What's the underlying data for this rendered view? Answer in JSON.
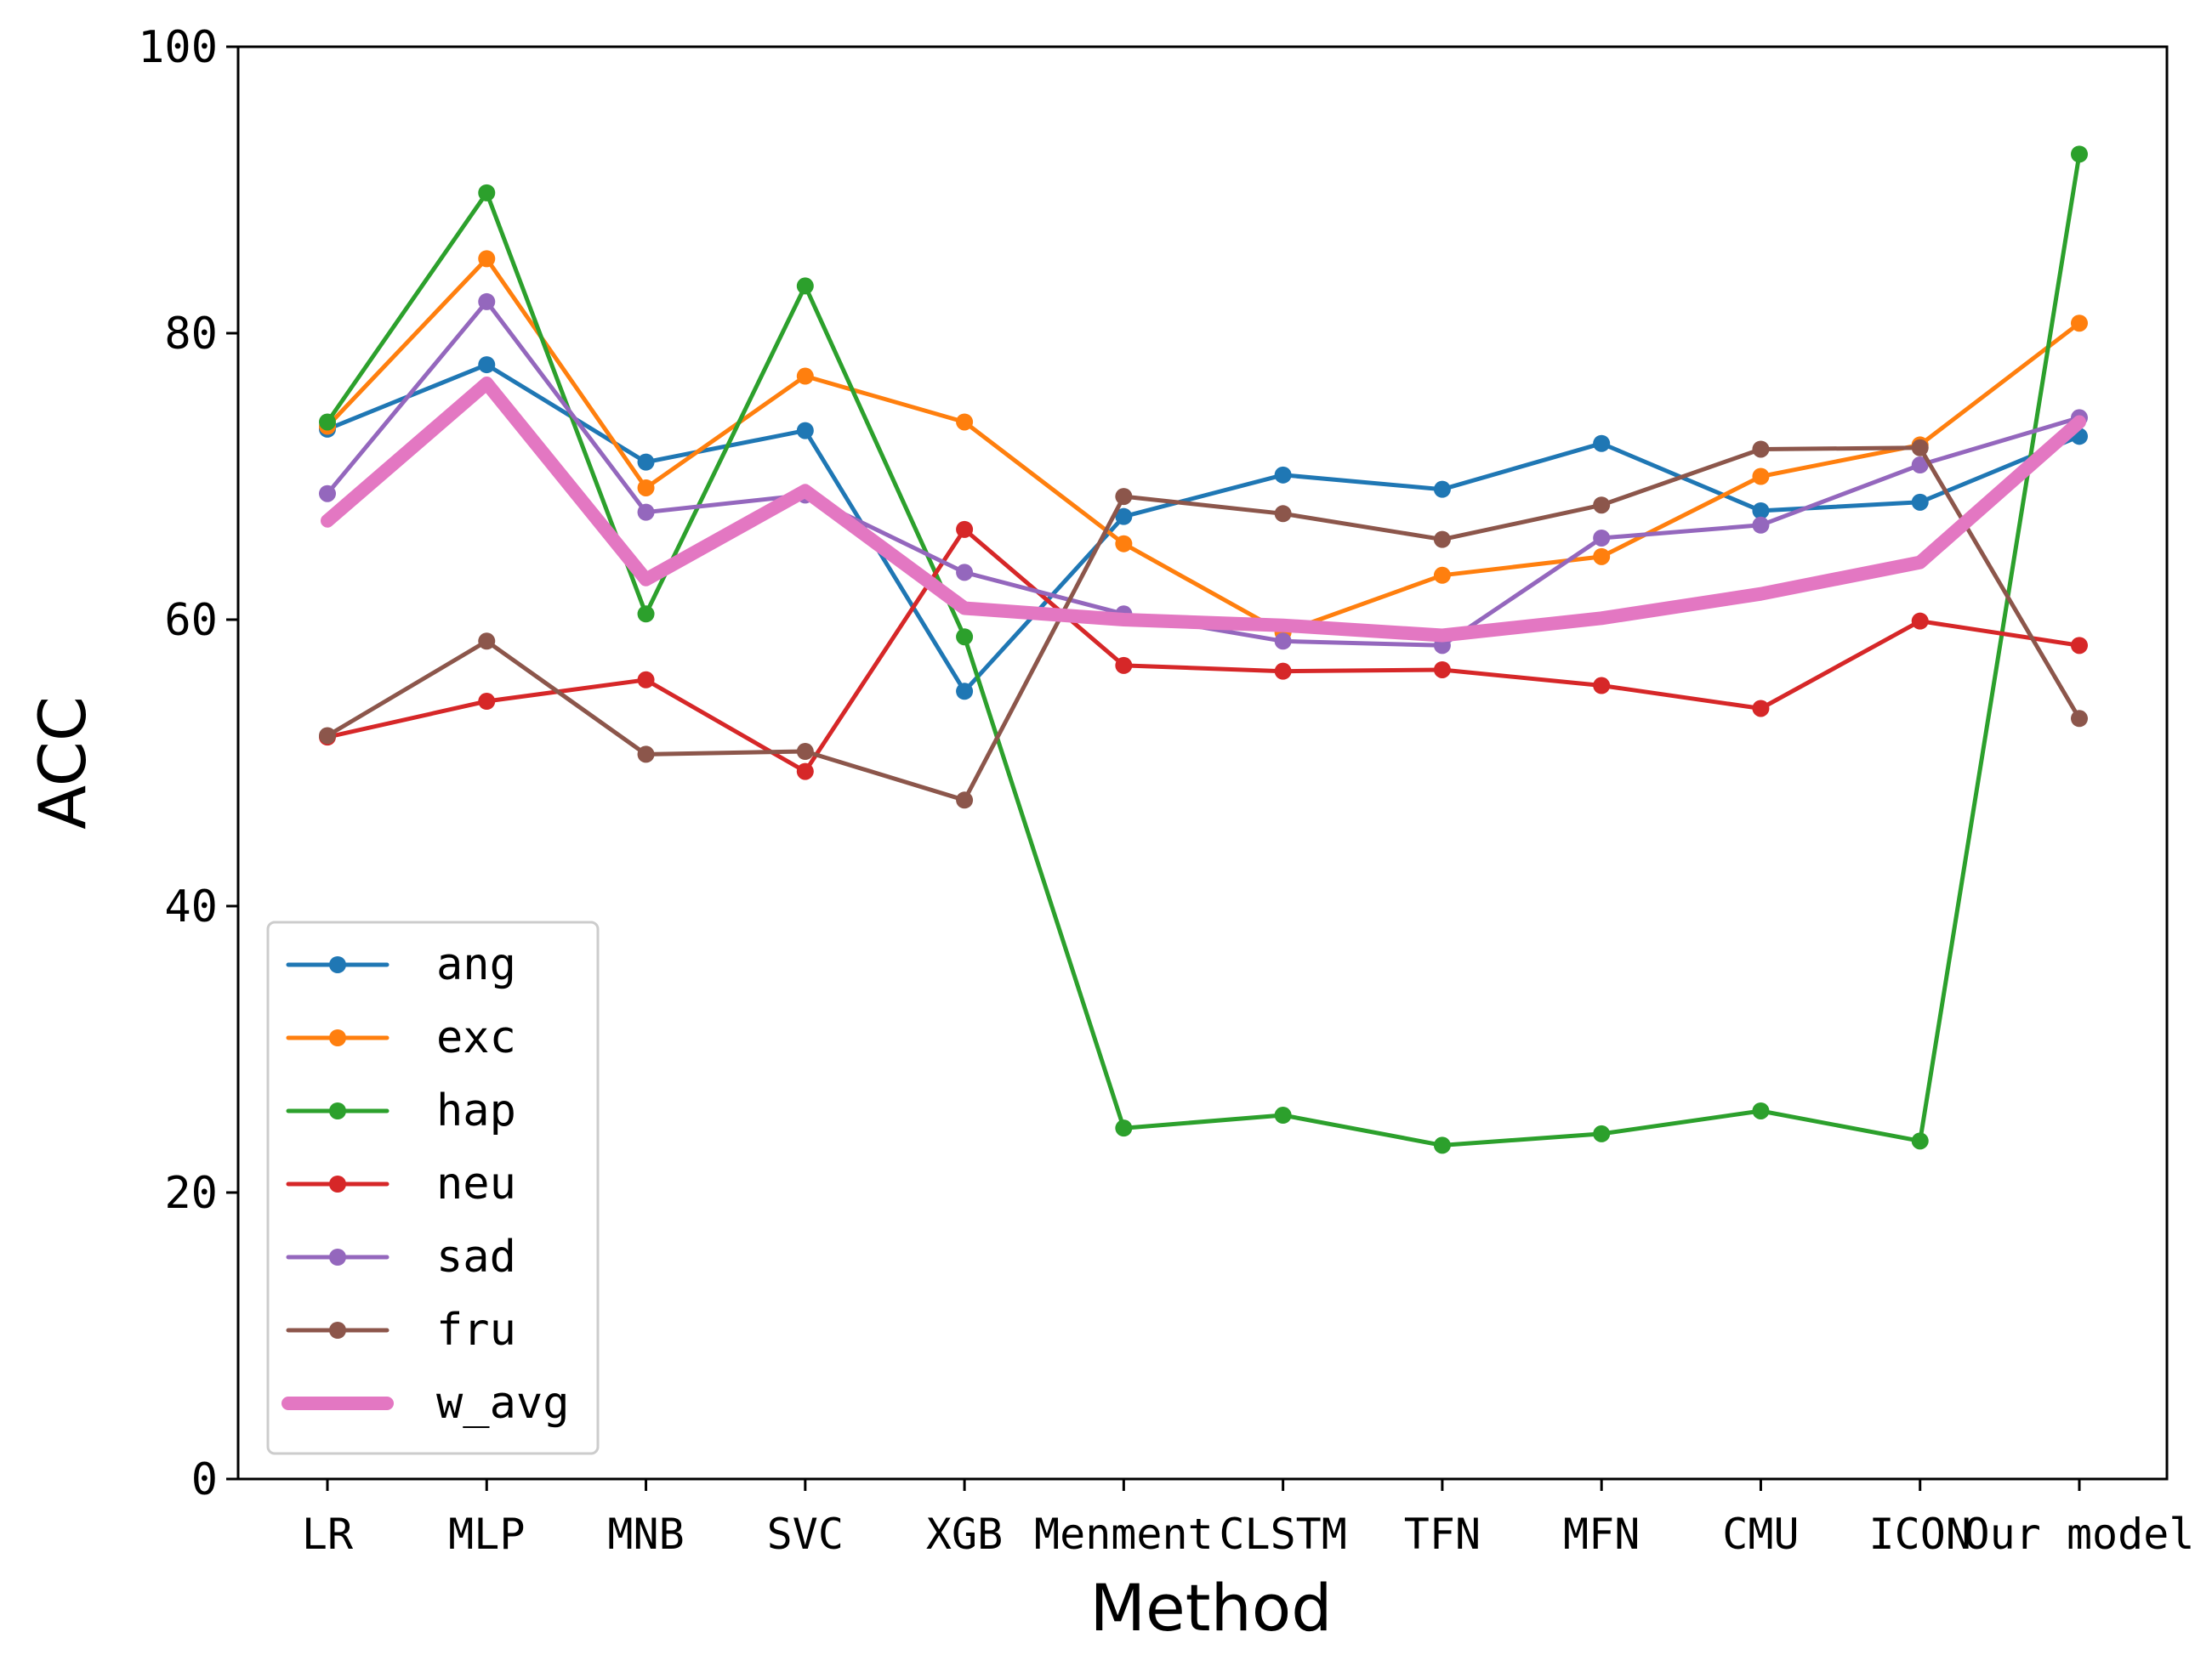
{
  "chart_data": {
    "type": "line",
    "title": "",
    "xlabel": "Method",
    "ylabel": "ACC",
    "ylim": [
      0,
      100
    ],
    "yticks": [
      0,
      20,
      40,
      60,
      80,
      100
    ],
    "grid": false,
    "legend_position": "lower-left",
    "categories": [
      "LR",
      "MLP",
      "MNB",
      "SVC",
      "XGB",
      "Menment",
      "CLSTM",
      "TFN",
      "MFN",
      "CMU",
      "ICON",
      "Our model"
    ],
    "series": [
      {
        "name": "ang",
        "color": "#1f77b4",
        "width": "thin",
        "values": [
          73.3,
          77.8,
          71.0,
          73.2,
          55.0,
          67.2,
          70.1,
          69.1,
          72.3,
          67.6,
          68.2,
          72.8
        ]
      },
      {
        "name": "exc",
        "color": "#ff7f0e",
        "width": "thin",
        "values": [
          73.5,
          85.2,
          69.2,
          77.0,
          73.8,
          65.3,
          59.1,
          63.1,
          64.4,
          70.0,
          72.2,
          80.7
        ]
      },
      {
        "name": "hap",
        "color": "#2ca02c",
        "width": "thin",
        "values": [
          73.8,
          89.8,
          60.4,
          83.3,
          58.8,
          24.5,
          25.4,
          23.3,
          24.1,
          25.7,
          23.6,
          92.5
        ]
      },
      {
        "name": "neu",
        "color": "#d62728",
        "width": "thin",
        "values": [
          51.8,
          54.3,
          55.8,
          49.4,
          66.3,
          56.8,
          56.4,
          56.5,
          55.4,
          53.8,
          59.9,
          58.2
        ]
      },
      {
        "name": "sad",
        "color": "#9467bd",
        "width": "thin",
        "values": [
          68.8,
          82.2,
          67.5,
          68.7,
          63.3,
          60.4,
          58.5,
          58.2,
          65.7,
          66.6,
          70.8,
          74.1
        ]
      },
      {
        "name": "fru",
        "color": "#8c564b",
        "width": "thin",
        "values": [
          51.9,
          58.5,
          50.6,
          50.8,
          47.4,
          68.6,
          67.4,
          65.6,
          68.0,
          71.9,
          72.0,
          53.1
        ]
      },
      {
        "name": "w_avg",
        "color": "#e377c2",
        "width": "thick",
        "values": [
          66.9,
          76.5,
          62.8,
          69.0,
          60.8,
          60.0,
          59.6,
          58.9,
          60.1,
          61.8,
          64.0,
          73.8
        ]
      }
    ]
  }
}
